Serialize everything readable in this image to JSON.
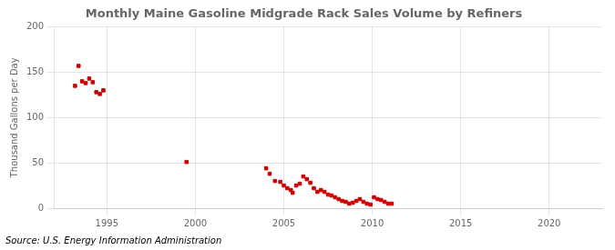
{
  "chart_data": {
    "type": "scatter",
    "title": "Monthly Maine Gasoline Midgrade Rack Sales Volume by Refiners",
    "ylabel": "Thousand Gallons per Day",
    "annotations": [
      "Source: U.S. Energy Information Administration"
    ],
    "x": [
      1993.2,
      1993.4,
      1993.6,
      1993.8,
      1994.0,
      1994.2,
      1994.4,
      1994.6,
      1994.8,
      1999.5,
      2004.0,
      2004.2,
      2004.5,
      2004.8,
      2005.0,
      2005.2,
      2005.4,
      2005.5,
      2005.7,
      2005.9,
      2006.1,
      2006.3,
      2006.5,
      2006.7,
      2006.9,
      2007.1,
      2007.3,
      2007.5,
      2007.7,
      2007.9,
      2008.1,
      2008.3,
      2008.5,
      2008.7,
      2008.9,
      2009.1,
      2009.3,
      2009.5,
      2009.7,
      2009.9,
      2010.1,
      2010.3,
      2010.5,
      2010.7,
      2010.9,
      2011.1
    ],
    "values": [
      135,
      157,
      140,
      138,
      143,
      139,
      128,
      126,
      130,
      51,
      44,
      38,
      30,
      29,
      25,
      22,
      20,
      17,
      25,
      27,
      35,
      32,
      28,
      22,
      18,
      20,
      18,
      15,
      14,
      12,
      10,
      8,
      7,
      5,
      6,
      8,
      10,
      7,
      5,
      4,
      12,
      10,
      9,
      7,
      5,
      5
    ],
    "color": "#cc0000",
    "marker": "square",
    "xlim": [
      1992.0,
      2023.0
    ],
    "xticks": [
      1995,
      2000,
      2005,
      2010,
      2015,
      2020
    ],
    "ylim": [
      0,
      200
    ],
    "yticks": [
      0,
      50,
      100,
      150,
      200
    ],
    "grid": true
  }
}
